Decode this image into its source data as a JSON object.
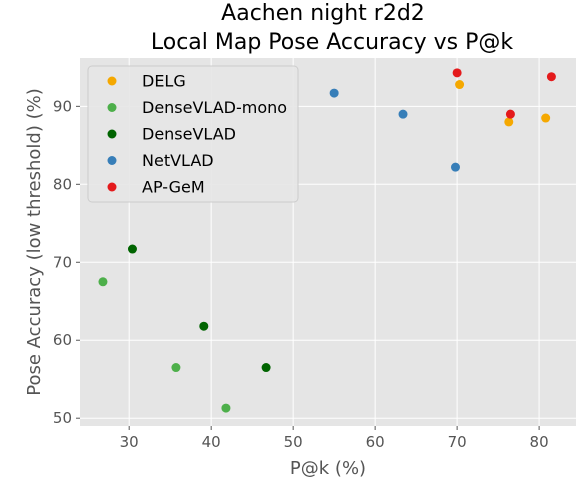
{
  "chart_data": {
    "type": "scatter",
    "title_lines": [
      "Aachen night r2d2",
      "Local Map Pose Accuracy vs P@k"
    ],
    "xlabel": "P@k (%)",
    "ylabel": "Pose Accuracy (low threshold) (%)",
    "xlim": [
      24,
      84.5
    ],
    "ylim": [
      49,
      96.2
    ],
    "xticks": [
      30,
      40,
      50,
      60,
      70,
      80
    ],
    "yticks": [
      50,
      60,
      70,
      80,
      90
    ],
    "grid": true,
    "legend_position": "top-left",
    "series": [
      {
        "name": "DELG",
        "color": "#f5a800",
        "points": [
          [
            70.3,
            92.8
          ],
          [
            76.3,
            88.0
          ],
          [
            80.8,
            88.5
          ]
        ]
      },
      {
        "name": "DenseVLAD-mono",
        "color": "#4daf4a",
        "points": [
          [
            26.8,
            67.5
          ],
          [
            35.7,
            56.5
          ],
          [
            41.8,
            51.3
          ]
        ]
      },
      {
        "name": "DenseVLAD",
        "color": "#006400",
        "points": [
          [
            30.4,
            71.7
          ],
          [
            39.1,
            61.8
          ],
          [
            46.7,
            56.5
          ]
        ]
      },
      {
        "name": "NetVLAD",
        "color": "#377eb8",
        "points": [
          [
            55.0,
            91.7
          ],
          [
            63.4,
            89.0
          ],
          [
            69.8,
            82.2
          ]
        ]
      },
      {
        "name": "AP-GeM",
        "color": "#e41a1c",
        "points": [
          [
            70.0,
            94.3
          ],
          [
            76.5,
            89.0
          ],
          [
            81.5,
            93.8
          ]
        ]
      }
    ]
  }
}
